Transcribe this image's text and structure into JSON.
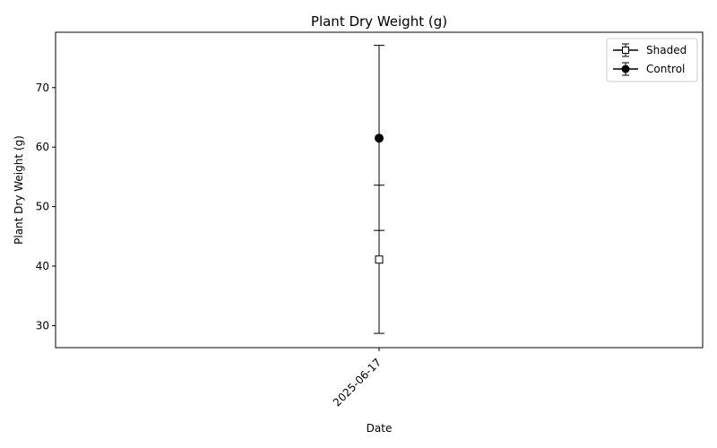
{
  "chart_data": {
    "type": "scatter",
    "title": "Plant Dry Weight (g)",
    "xlabel": "Date",
    "ylabel": "Plant Dry Weight (g)",
    "x_categories": [
      "2025-06-17"
    ],
    "ylim": [
      26.3,
      79.3
    ],
    "y_ticks": [
      30,
      40,
      50,
      60,
      70
    ],
    "grid": false,
    "legend_position": "top-right",
    "series": [
      {
        "name": "Shaded",
        "marker": "square-open",
        "color": "#000000",
        "points": [
          {
            "x": "2025-06-17",
            "y": 41.1,
            "err_low": 28.7,
            "err_high": 53.6
          }
        ]
      },
      {
        "name": "Control",
        "marker": "circle-filled",
        "color": "#000000",
        "points": [
          {
            "x": "2025-06-17",
            "y": 61.5,
            "err_low": 46.0,
            "err_high": 77.1
          }
        ]
      }
    ]
  }
}
